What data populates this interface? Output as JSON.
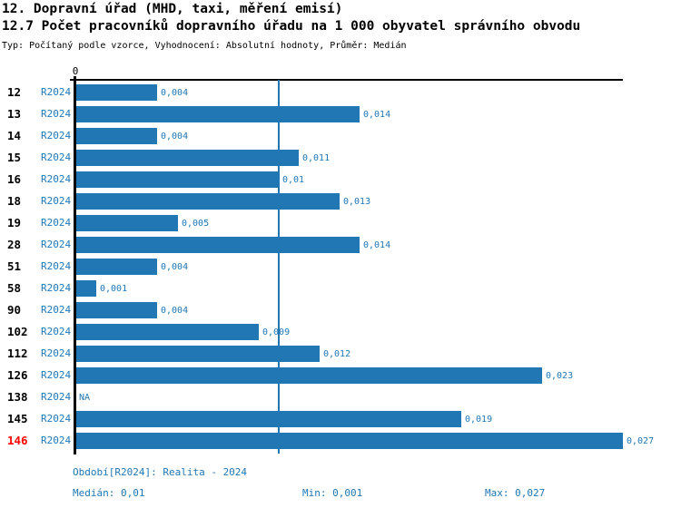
{
  "header": {
    "title1": "12. Dopravní úřad (MHD, taxi, měření emisí)",
    "title2": "12.7 Počet pracovníků dopravního úřadu na 1 000 obyvatel správního obvodu",
    "subtitle": "Typ: Počítaný podle vzorce, Vyhodnocení: Absolutní hodnoty, Průměr: Medián"
  },
  "chart_data": {
    "type": "bar",
    "orientation": "horizontal",
    "title": "12.7 Počet pracovníků dopravního úřadu na 1 000 obyvatel správního obvodu",
    "categories": [
      "12",
      "13",
      "14",
      "15",
      "16",
      "18",
      "19",
      "28",
      "51",
      "58",
      "90",
      "102",
      "112",
      "126",
      "138",
      "145",
      "146"
    ],
    "series": [
      {
        "name": "R2024",
        "values": [
          0.004,
          0.014,
          0.004,
          0.011,
          0.01,
          0.013,
          0.005,
          0.014,
          0.004,
          0.001,
          0.004,
          0.009,
          0.012,
          0.023,
          null,
          0.019,
          0.027
        ]
      }
    ],
    "value_labels": [
      "0,004",
      "0,014",
      "0,004",
      "0,011",
      "0,01",
      "0,013",
      "0,005",
      "0,014",
      "0,004",
      "0,001",
      "0,004",
      "0,009",
      "0,012",
      "0,023",
      "NA",
      "0,019",
      "0,027"
    ],
    "axis": {
      "zero_label": "0"
    },
    "xlim": [
      0,
      0.027
    ],
    "median": 0.01,
    "highlight_category": "146",
    "legend_position": "none",
    "grid": "off",
    "colors": {
      "bar": "#2077b4",
      "median_line": "#2077b4",
      "series_label": "#2077b4",
      "value_label": "#2077b4",
      "highlight_label": "#ff0000",
      "axis": "#000000"
    }
  },
  "footer": {
    "period": "Období[R2024]: Realita - 2024",
    "median": "Medián: 0,01",
    "min": "Min: 0,001",
    "max": "Max: 0,027"
  }
}
